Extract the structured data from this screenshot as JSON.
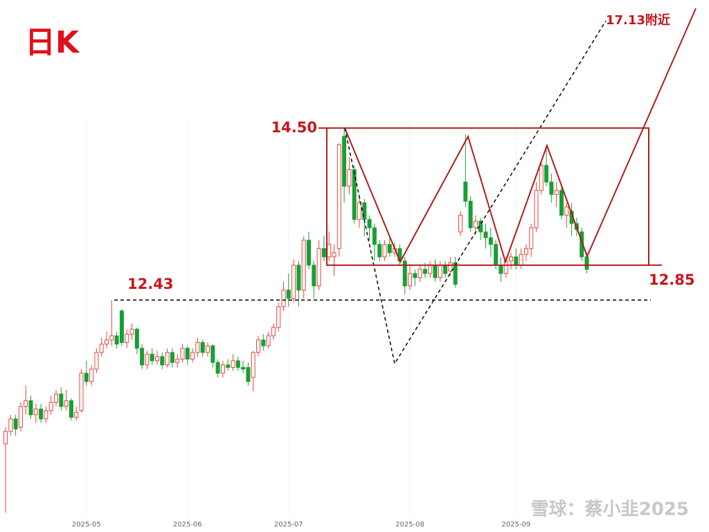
{
  "chart_data": {
    "type": "candlestick",
    "title": "日K",
    "watermark": "雪球：蔡小韭2025",
    "annotations": [
      {
        "value": 14.5,
        "label": "14.50"
      },
      {
        "value": 12.85,
        "label": "12.85"
      },
      {
        "value": 12.43,
        "label": "12.43"
      }
    ],
    "target_label": "17.13附近",
    "up_color": "#e8433b",
    "down_color": "#1a9e34",
    "ylim": [
      9.64,
      16.04
    ],
    "categories": [
      null,
      null,
      null,
      null,
      null,
      null,
      null,
      null,
      null,
      null,
      null,
      null,
      null,
      null,
      null,
      null,
      "2025-05",
      null,
      null,
      null,
      null,
      null,
      null,
      null,
      null,
      null,
      null,
      null,
      null,
      null,
      null,
      null,
      null,
      null,
      null,
      null,
      "2025-06",
      null,
      null,
      null,
      null,
      null,
      null,
      null,
      null,
      null,
      null,
      null,
      null,
      null,
      null,
      null,
      null,
      null,
      null,
      null,
      "2025-07",
      null,
      null,
      null,
      null,
      null,
      null,
      null,
      null,
      null,
      null,
      null,
      null,
      null,
      null,
      null,
      null,
      null,
      null,
      null,
      null,
      null,
      null,
      null,
      "2025-08",
      null,
      null,
      null,
      null,
      null,
      null,
      null,
      null,
      null,
      null,
      null,
      null,
      null,
      null,
      null,
      null,
      null,
      null,
      null,
      null,
      "2025-09",
      null,
      null,
      null,
      null,
      null,
      null,
      null,
      null,
      null,
      null,
      null,
      null,
      null,
      null
    ],
    "open": [
      10.7,
      10.85,
      11.0,
      10.9,
      11.15,
      11.22,
      11.05,
      11.12,
      11.0,
      11.1,
      11.2,
      11.3,
      11.15,
      11.22,
      11.02,
      11.1,
      11.55,
      11.45,
      11.6,
      11.8,
      11.9,
      11.95,
      12.0,
      12.3,
      11.92,
      12.02,
      12.08,
      11.85,
      11.65,
      11.78,
      11.7,
      11.75,
      11.65,
      11.8,
      11.68,
      11.72,
      11.85,
      11.72,
      11.8,
      11.92,
      11.8,
      11.88,
      11.68,
      11.55,
      11.65,
      11.62,
      11.7,
      11.62,
      11.62,
      11.5,
      11.8,
      11.95,
      11.88,
      12.0,
      12.1,
      12.35,
      12.55,
      12.45,
      12.85,
      12.55,
      13.15,
      12.85,
      12.6,
      13.05,
      12.95,
      12.95,
      13.05,
      14.4,
      13.8,
      14.0,
      13.4,
      13.6,
      13.4,
      13.3,
      13.1,
      12.95,
      13.1,
      13.0,
      13.05,
      12.9,
      12.6,
      12.75,
      12.7,
      12.8,
      12.75,
      12.85,
      12.7,
      12.85,
      12.78,
      12.88,
      13.25,
      13.85,
      13.62,
      13.3,
      13.38,
      13.25,
      13.18,
      13.1,
      12.85,
      12.75,
      12.9,
      12.95,
      12.85,
      12.98,
      13.05,
      13.3,
      13.75,
      14.05,
      13.85,
      13.7,
      13.75,
      13.45,
      13.5,
      13.35,
      13.25,
      12.95
    ],
    "high": [
      10.9,
      11.05,
      11.05,
      11.2,
      11.4,
      11.28,
      11.18,
      11.18,
      11.15,
      11.28,
      11.35,
      11.38,
      11.35,
      11.25,
      11.15,
      11.6,
      11.7,
      11.65,
      11.85,
      11.98,
      12.05,
      12.43,
      12.05,
      12.32,
      12.08,
      12.15,
      12.1,
      11.9,
      11.82,
      11.85,
      11.82,
      11.8,
      11.85,
      11.85,
      11.78,
      11.9,
      11.88,
      11.85,
      11.98,
      11.95,
      11.92,
      11.9,
      11.72,
      11.7,
      11.72,
      11.78,
      11.75,
      11.7,
      11.68,
      11.82,
      12.0,
      12.02,
      12.05,
      12.15,
      12.4,
      12.65,
      12.75,
      12.92,
      12.9,
      13.2,
      13.25,
      12.9,
      13.15,
      13.2,
      13.25,
      13.1,
      14.32,
      14.5,
      14.15,
      14.05,
      13.7,
      13.65,
      13.45,
      13.35,
      13.15,
      13.15,
      13.18,
      13.12,
      13.1,
      12.95,
      12.85,
      12.8,
      12.85,
      12.88,
      12.9,
      12.92,
      12.9,
      12.9,
      12.95,
      12.95,
      13.5,
      14.42,
      13.68,
      13.45,
      13.42,
      13.35,
      13.3,
      13.15,
      12.95,
      12.95,
      13.0,
      13.05,
      13.05,
      13.1,
      13.35,
      13.85,
      14.1,
      14.25,
      13.95,
      13.85,
      13.8,
      13.6,
      13.6,
      13.42,
      13.3,
      13.0
    ],
    "low": [
      9.87,
      10.8,
      10.8,
      10.85,
      11.05,
      11.0,
      10.95,
      10.95,
      10.95,
      11.05,
      11.15,
      11.1,
      11.1,
      10.98,
      10.98,
      11.08,
      11.4,
      11.4,
      11.55,
      11.75,
      11.85,
      11.88,
      11.85,
      11.88,
      11.85,
      11.95,
      11.78,
      11.6,
      11.6,
      11.65,
      11.65,
      11.6,
      11.62,
      11.62,
      11.62,
      11.68,
      11.65,
      11.68,
      11.75,
      11.75,
      11.75,
      11.62,
      11.5,
      11.5,
      11.58,
      11.58,
      11.58,
      11.55,
      11.4,
      11.33,
      11.75,
      11.82,
      11.85,
      11.95,
      12.05,
      12.3,
      12.35,
      12.4,
      12.35,
      12.45,
      12.8,
      12.45,
      12.55,
      12.9,
      12.9,
      12.72,
      12.95,
      13.6,
      13.7,
      13.35,
      13.3,
      13.2,
      13.15,
      12.9,
      12.9,
      12.9,
      12.95,
      12.95,
      12.85,
      12.5,
      12.55,
      12.6,
      12.65,
      12.7,
      12.7,
      12.65,
      12.65,
      12.7,
      12.72,
      12.58,
      13.2,
      13.55,
      13.25,
      13.22,
      13.15,
      13.05,
      12.95,
      12.8,
      12.65,
      12.7,
      12.8,
      12.8,
      12.8,
      12.9,
      12.95,
      13.25,
      13.7,
      13.8,
      13.6,
      13.55,
      13.4,
      13.3,
      13.2,
      13.2,
      12.9,
      12.75
    ],
    "close": [
      10.85,
      11.0,
      10.88,
      11.15,
      11.22,
      11.05,
      11.12,
      11.0,
      11.1,
      11.2,
      11.3,
      11.15,
      11.22,
      11.02,
      11.08,
      11.55,
      11.45,
      11.6,
      11.8,
      11.9,
      11.95,
      12.0,
      11.9,
      11.92,
      12.02,
      12.08,
      11.85,
      11.65,
      11.78,
      11.7,
      11.75,
      11.65,
      11.8,
      11.68,
      11.72,
      11.85,
      11.72,
      11.8,
      11.92,
      11.8,
      11.88,
      11.68,
      11.55,
      11.65,
      11.62,
      11.7,
      11.62,
      11.6,
      11.45,
      11.8,
      11.95,
      11.88,
      12.0,
      12.1,
      12.35,
      12.55,
      12.45,
      12.85,
      12.55,
      13.15,
      12.85,
      12.6,
      13.05,
      12.95,
      13.1,
      13.0,
      14.3,
      13.8,
      14.0,
      13.4,
      13.6,
      13.4,
      13.3,
      13.1,
      12.95,
      13.1,
      13.0,
      13.05,
      12.9,
      12.6,
      12.75,
      12.7,
      12.8,
      12.75,
      12.85,
      12.7,
      12.85,
      12.75,
      12.88,
      12.62,
      13.45,
      13.62,
      13.3,
      13.38,
      13.25,
      13.18,
      13.1,
      12.85,
      12.75,
      12.9,
      12.95,
      12.85,
      12.98,
      13.05,
      13.3,
      13.75,
      14.05,
      13.85,
      13.7,
      13.75,
      13.45,
      13.55,
      13.35,
      13.28,
      12.95,
      12.8
    ]
  }
}
